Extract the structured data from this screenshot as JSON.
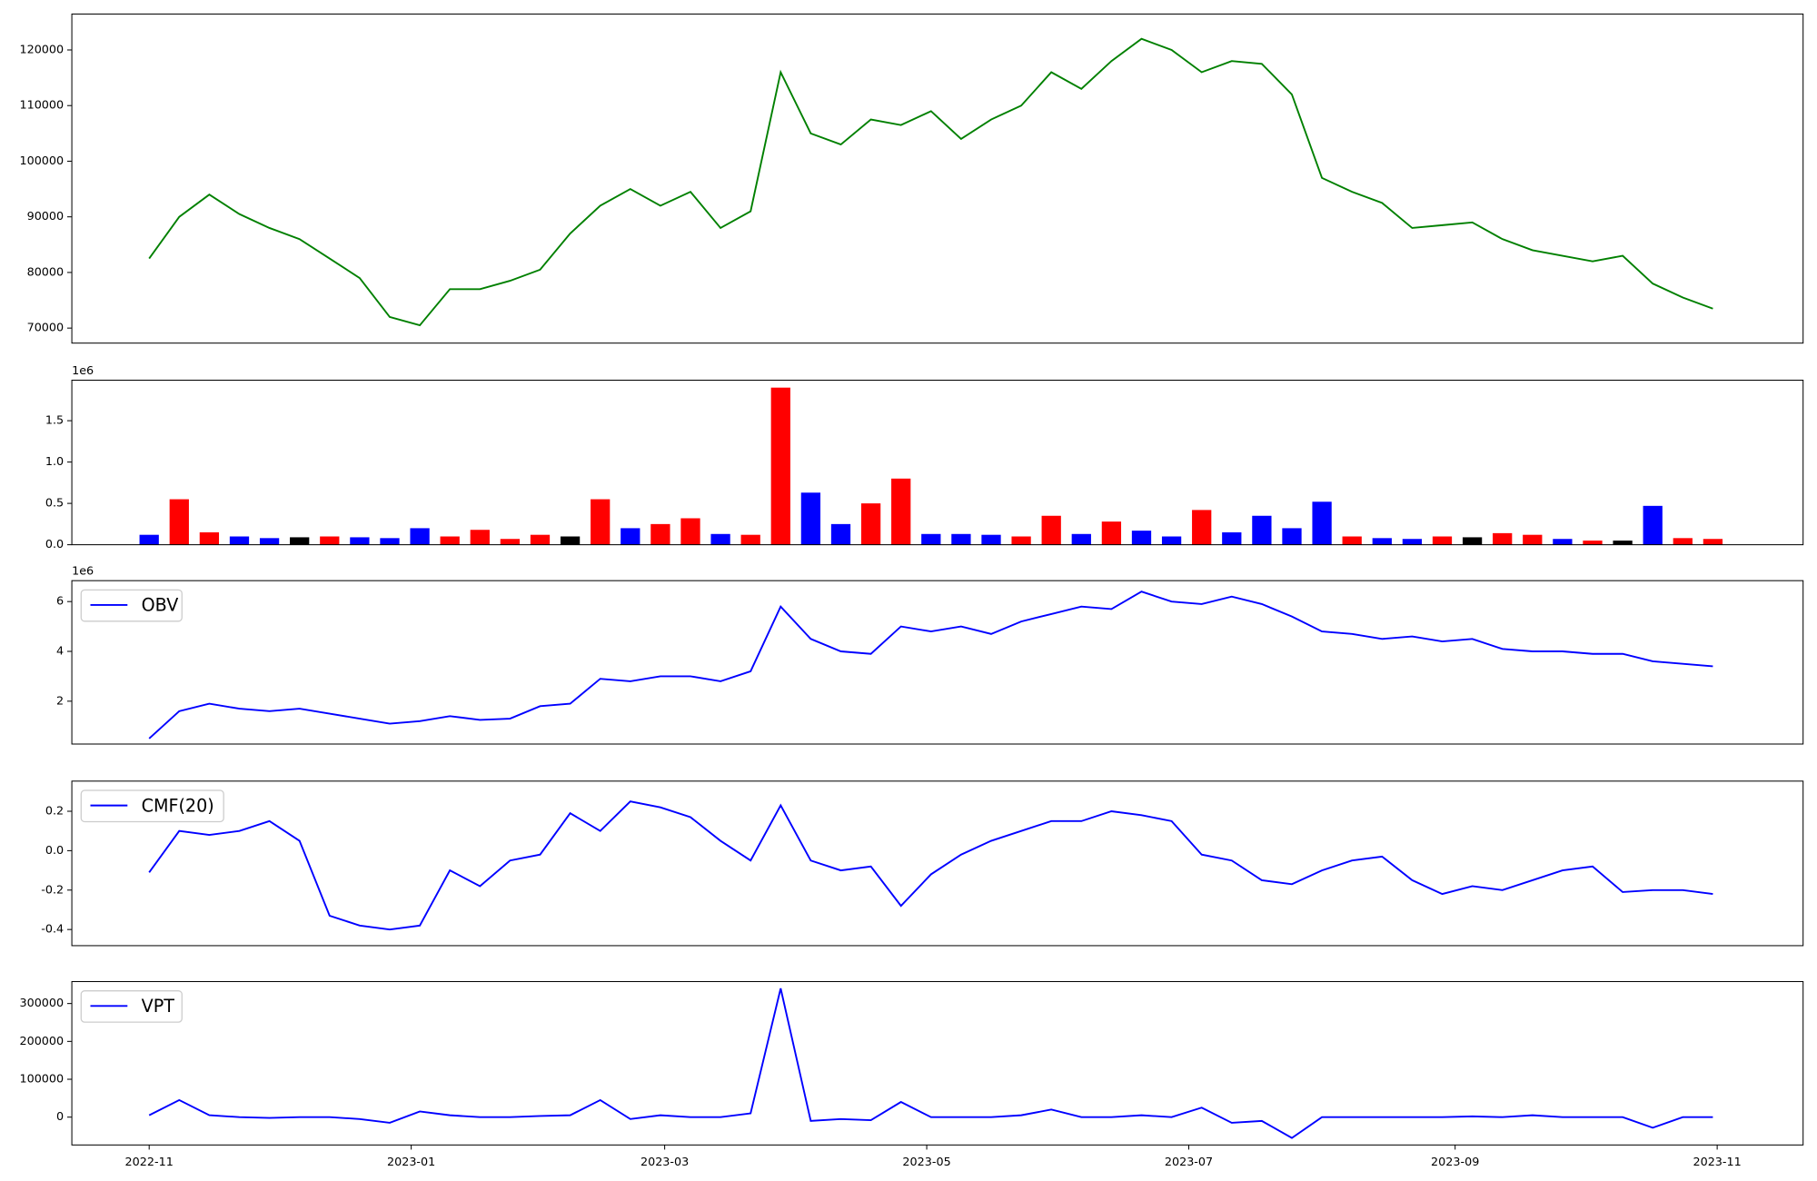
{
  "chart_data": [
    {
      "type": "line",
      "xlim": [
        19279,
        19682
      ],
      "ylim": [
        67300,
        126460
      ],
      "yticks": [
        70000,
        80000,
        90000,
        100000,
        110000,
        120000
      ],
      "color": "#008000",
      "x": [
        19297,
        19304,
        19311,
        19318,
        19325,
        19332,
        19339,
        19346,
        19353,
        19360,
        19367,
        19374,
        19381,
        19388,
        19395,
        19402,
        19409,
        19416,
        19423,
        19430,
        19437,
        19444,
        19451,
        19458,
        19465,
        19472,
        19479,
        19486,
        19493,
        19500,
        19507,
        19514,
        19521,
        19528,
        19535,
        19542,
        19549,
        19556,
        19563,
        19570,
        19577,
        19584,
        19591,
        19598,
        19605,
        19612,
        19619,
        19626,
        19633,
        19640,
        19647,
        19654,
        19661
      ],
      "values": [
        82500,
        90000,
        94000,
        90500,
        88000,
        86000,
        82500,
        79000,
        72000,
        70500,
        77000,
        77000,
        78500,
        80500,
        87000,
        92000,
        95000,
        92000,
        94500,
        88000,
        91000,
        116000,
        105000,
        103000,
        107500,
        106500,
        109000,
        104000,
        107500,
        110000,
        116000,
        113000,
        118000,
        122000,
        120000,
        116000,
        118000,
        117500,
        112000,
        97000,
        94500,
        92500,
        88000,
        88500,
        89000,
        86000,
        84000,
        83000,
        82000,
        83000,
        78000,
        75500,
        73500
      ]
    },
    {
      "type": "bar",
      "xlim": [
        19279,
        19682
      ],
      "ylim": [
        0,
        1990000
      ],
      "y_offset_label": "1e6",
      "yticks": [
        {
          "value": 0,
          "label": "0.0"
        },
        {
          "value": 500000,
          "label": "0.5"
        },
        {
          "value": 1000000,
          "label": "1.0"
        },
        {
          "value": 1500000,
          "label": "1.5"
        }
      ],
      "x": [
        19297,
        19304,
        19311,
        19318,
        19325,
        19332,
        19339,
        19346,
        19353,
        19360,
        19367,
        19374,
        19381,
        19388,
        19395,
        19402,
        19409,
        19416,
        19423,
        19430,
        19437,
        19444,
        19451,
        19458,
        19465,
        19472,
        19479,
        19486,
        19493,
        19500,
        19507,
        19514,
        19521,
        19528,
        19535,
        19542,
        19549,
        19556,
        19563,
        19570,
        19577,
        19584,
        19591,
        19598,
        19605,
        19612,
        19619,
        19626,
        19633,
        19640,
        19647,
        19654,
        19661
      ],
      "values": [
        120000,
        550000,
        150000,
        100000,
        80000,
        90000,
        100000,
        90000,
        80000,
        200000,
        100000,
        180000,
        70000,
        120000,
        100000,
        550000,
        200000,
        250000,
        320000,
        130000,
        120000,
        1900000,
        630000,
        250000,
        500000,
        800000,
        130000,
        130000,
        120000,
        100000,
        350000,
        130000,
        280000,
        170000,
        100000,
        420000,
        150000,
        350000,
        200000,
        520000,
        100000,
        80000,
        70000,
        100000,
        90000,
        140000,
        120000,
        70000,
        50000,
        50000,
        470000,
        80000,
        70000
      ],
      "colors": [
        "blue",
        "red",
        "red",
        "blue",
        "blue",
        "black",
        "red",
        "blue",
        "blue",
        "blue",
        "red",
        "red",
        "red",
        "red",
        "black",
        "red",
        "blue",
        "red",
        "red",
        "blue",
        "red",
        "red",
        "blue",
        "blue",
        "red",
        "red",
        "blue",
        "blue",
        "blue",
        "red",
        "red",
        "blue",
        "red",
        "blue",
        "blue",
        "red",
        "blue",
        "blue",
        "blue",
        "blue",
        "red",
        "blue",
        "blue",
        "red",
        "black",
        "red",
        "red",
        "blue",
        "red",
        "black",
        "blue",
        "red",
        "red"
      ]
    },
    {
      "type": "line",
      "xlim": [
        19279,
        19682
      ],
      "ylim": [
        280000,
        6840000
      ],
      "y_offset_label": "1e6",
      "legend": "upper left",
      "yticks": [
        {
          "value": 2000000,
          "label": "2"
        },
        {
          "value": 4000000,
          "label": "4"
        },
        {
          "value": 6000000,
          "label": "6"
        }
      ],
      "x": [
        19297,
        19304,
        19311,
        19318,
        19325,
        19332,
        19339,
        19346,
        19353,
        19360,
        19367,
        19374,
        19381,
        19388,
        19395,
        19402,
        19409,
        19416,
        19423,
        19430,
        19437,
        19444,
        19451,
        19458,
        19465,
        19472,
        19479,
        19486,
        19493,
        19500,
        19507,
        19514,
        19521,
        19528,
        19535,
        19542,
        19549,
        19556,
        19563,
        19570,
        19577,
        19584,
        19591,
        19598,
        19605,
        19612,
        19619,
        19626,
        19633,
        19640,
        19647,
        19654,
        19661
      ],
      "series": [
        {
          "name": "OBV",
          "color": "blue",
          "values": [
            500000,
            1600000,
            1900000,
            1700000,
            1600000,
            1700000,
            1500000,
            1300000,
            1100000,
            1200000,
            1400000,
            1250000,
            1300000,
            1800000,
            1900000,
            2900000,
            2800000,
            3000000,
            3000000,
            2800000,
            3200000,
            5800000,
            4500000,
            4000000,
            3900000,
            5000000,
            4800000,
            5000000,
            4700000,
            5200000,
            5500000,
            5800000,
            5700000,
            6400000,
            6000000,
            5900000,
            6200000,
            5900000,
            5400000,
            4800000,
            4700000,
            4500000,
            4600000,
            4400000,
            4500000,
            4100000,
            4000000,
            4000000,
            3900000,
            3900000,
            3600000,
            3500000,
            3400000
          ]
        }
      ]
    },
    {
      "type": "line",
      "xlim": [
        19279,
        19682
      ],
      "ylim": [
        -0.482,
        0.353
      ],
      "legend": "upper left",
      "yticks": [
        -0.4,
        -0.2,
        {
          "value": 0,
          "label": "0.0"
        },
        0.2
      ],
      "x": [
        19297,
        19304,
        19311,
        19318,
        19325,
        19332,
        19339,
        19346,
        19353,
        19360,
        19367,
        19374,
        19381,
        19388,
        19395,
        19402,
        19409,
        19416,
        19423,
        19430,
        19437,
        19444,
        19451,
        19458,
        19465,
        19472,
        19479,
        19486,
        19493,
        19500,
        19507,
        19514,
        19521,
        19528,
        19535,
        19542,
        19549,
        19556,
        19563,
        19570,
        19577,
        19584,
        19591,
        19598,
        19605,
        19612,
        19619,
        19626,
        19633,
        19640,
        19647,
        19654,
        19661
      ],
      "series": [
        {
          "name": "CMF(20)",
          "color": "blue",
          "values": [
            -0.11,
            0.1,
            0.08,
            0.1,
            0.15,
            0.05,
            -0.33,
            -0.38,
            -0.4,
            -0.38,
            -0.1,
            -0.18,
            -0.05,
            -0.02,
            0.19,
            0.1,
            0.25,
            0.22,
            0.17,
            0.05,
            -0.05,
            0.23,
            -0.05,
            -0.1,
            -0.08,
            -0.28,
            -0.12,
            -0.02,
            0.05,
            0.1,
            0.15,
            0.15,
            0.2,
            0.18,
            0.15,
            -0.02,
            -0.05,
            -0.15,
            -0.17,
            -0.1,
            -0.05,
            -0.03,
            -0.15,
            -0.22,
            -0.18,
            -0.2,
            -0.15,
            -0.1,
            -0.08,
            -0.21,
            -0.2,
            -0.2,
            -0.22
          ]
        }
      ]
    },
    {
      "type": "line",
      "xlim": [
        19279,
        19682
      ],
      "ylim": [
        -73500,
        358000
      ],
      "legend": "upper left",
      "yticks": [
        0,
        100000,
        200000,
        300000
      ],
      "xticks": [
        {
          "value": 19297,
          "label": "2022-11"
        },
        {
          "value": 19358,
          "label": "2023-01"
        },
        {
          "value": 19417,
          "label": "2023-03"
        },
        {
          "value": 19478,
          "label": "2023-05"
        },
        {
          "value": 19539,
          "label": "2023-07"
        },
        {
          "value": 19601,
          "label": "2023-09"
        },
        {
          "value": 19662,
          "label": "2023-11"
        }
      ],
      "x": [
        19297,
        19304,
        19311,
        19318,
        19325,
        19332,
        19339,
        19346,
        19353,
        19360,
        19367,
        19374,
        19381,
        19388,
        19395,
        19402,
        19409,
        19416,
        19423,
        19430,
        19437,
        19444,
        19451,
        19458,
        19465,
        19472,
        19479,
        19486,
        19493,
        19500,
        19507,
        19514,
        19521,
        19528,
        19535,
        19542,
        19549,
        19556,
        19563,
        19570,
        19577,
        19584,
        19591,
        19598,
        19605,
        19612,
        19619,
        19626,
        19633,
        19640,
        19647,
        19654,
        19661
      ],
      "series": [
        {
          "name": "VPT",
          "color": "blue",
          "values": [
            5000,
            45000,
            5000,
            0,
            -2000,
            0,
            0,
            -5000,
            -15000,
            15000,
            5000,
            0,
            0,
            3000,
            5000,
            45000,
            -5000,
            5000,
            0,
            0,
            10000,
            340000,
            -10000,
            -5000,
            -8000,
            40000,
            0,
            0,
            0,
            5000,
            20000,
            0,
            0,
            5000,
            0,
            25000,
            -15000,
            -10000,
            -55000,
            0,
            0,
            0,
            0,
            0,
            2000,
            0,
            5000,
            0,
            0,
            0,
            -28000,
            0,
            0
          ]
        }
      ]
    }
  ]
}
